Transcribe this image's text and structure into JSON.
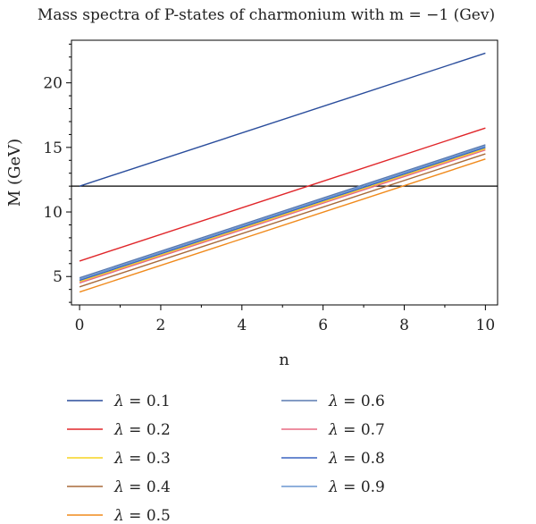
{
  "chart_data": {
    "type": "line",
    "title": "Mass spectra of P-states of charmonium with m = −1 (Gev)",
    "xlabel": "n",
    "ylabel": "M (GeV)",
    "xlim": [
      -0.2,
      10.3
    ],
    "ylim": [
      2.8,
      23.3
    ],
    "x_ticks": [
      0,
      2,
      4,
      6,
      8,
      10
    ],
    "y_ticks": [
      5,
      10,
      15,
      20
    ],
    "x_tick_labels": [
      "0",
      "2",
      "4",
      "6",
      "8",
      "10"
    ],
    "y_tick_labels": [
      "5",
      "10",
      "15",
      "20"
    ],
    "legend_position": "bottom",
    "reference_line": {
      "y": 12.0,
      "color": "#000000"
    },
    "series": [
      {
        "name": "λ = 0.1",
        "symbol": "λ",
        "value_text": "= 0.1",
        "color": "#2a4d9c",
        "x": [
          0,
          10
        ],
        "y": [
          12.0,
          22.3
        ]
      },
      {
        "name": "λ = 0.2",
        "symbol": "λ",
        "value_text": "= 0.2",
        "color": "#e0262a",
        "x": [
          0,
          10
        ],
        "y": [
          6.2,
          16.5
        ]
      },
      {
        "name": "λ = 0.3",
        "symbol": "λ",
        "value_text": "= 0.3",
        "color": "#f5d320",
        "x": [
          0,
          10
        ],
        "y": [
          4.6,
          14.9
        ]
      },
      {
        "name": "λ = 0.4",
        "symbol": "λ",
        "value_text": "= 0.4",
        "color": "#a86a3a",
        "x": [
          0,
          10
        ],
        "y": [
          4.2,
          14.5
        ]
      },
      {
        "name": "λ = 0.5",
        "symbol": "λ",
        "value_text": "= 0.5",
        "color": "#f08a1c",
        "x": [
          0,
          10
        ],
        "y": [
          3.8,
          14.1
        ]
      },
      {
        "name": "λ = 0.6",
        "symbol": "λ",
        "value_text": "= 0.6",
        "color": "#5a7ab0",
        "x": [
          0,
          10
        ],
        "y": [
          4.9,
          15.2
        ]
      },
      {
        "name": "λ = 0.7",
        "symbol": "λ",
        "value_text": "= 0.7",
        "color": "#e86a82",
        "x": [
          0,
          10
        ],
        "y": [
          4.5,
          14.8
        ]
      },
      {
        "name": "λ = 0.8",
        "symbol": "λ",
        "value_text": "= 0.8",
        "color": "#3a64c0",
        "x": [
          0,
          10
        ],
        "y": [
          4.7,
          15.0
        ]
      },
      {
        "name": "λ = 0.9",
        "symbol": "λ",
        "value_text": "= 0.9",
        "color": "#6a96d0",
        "x": [
          0,
          10
        ],
        "y": [
          4.8,
          15.1
        ]
      }
    ]
  }
}
